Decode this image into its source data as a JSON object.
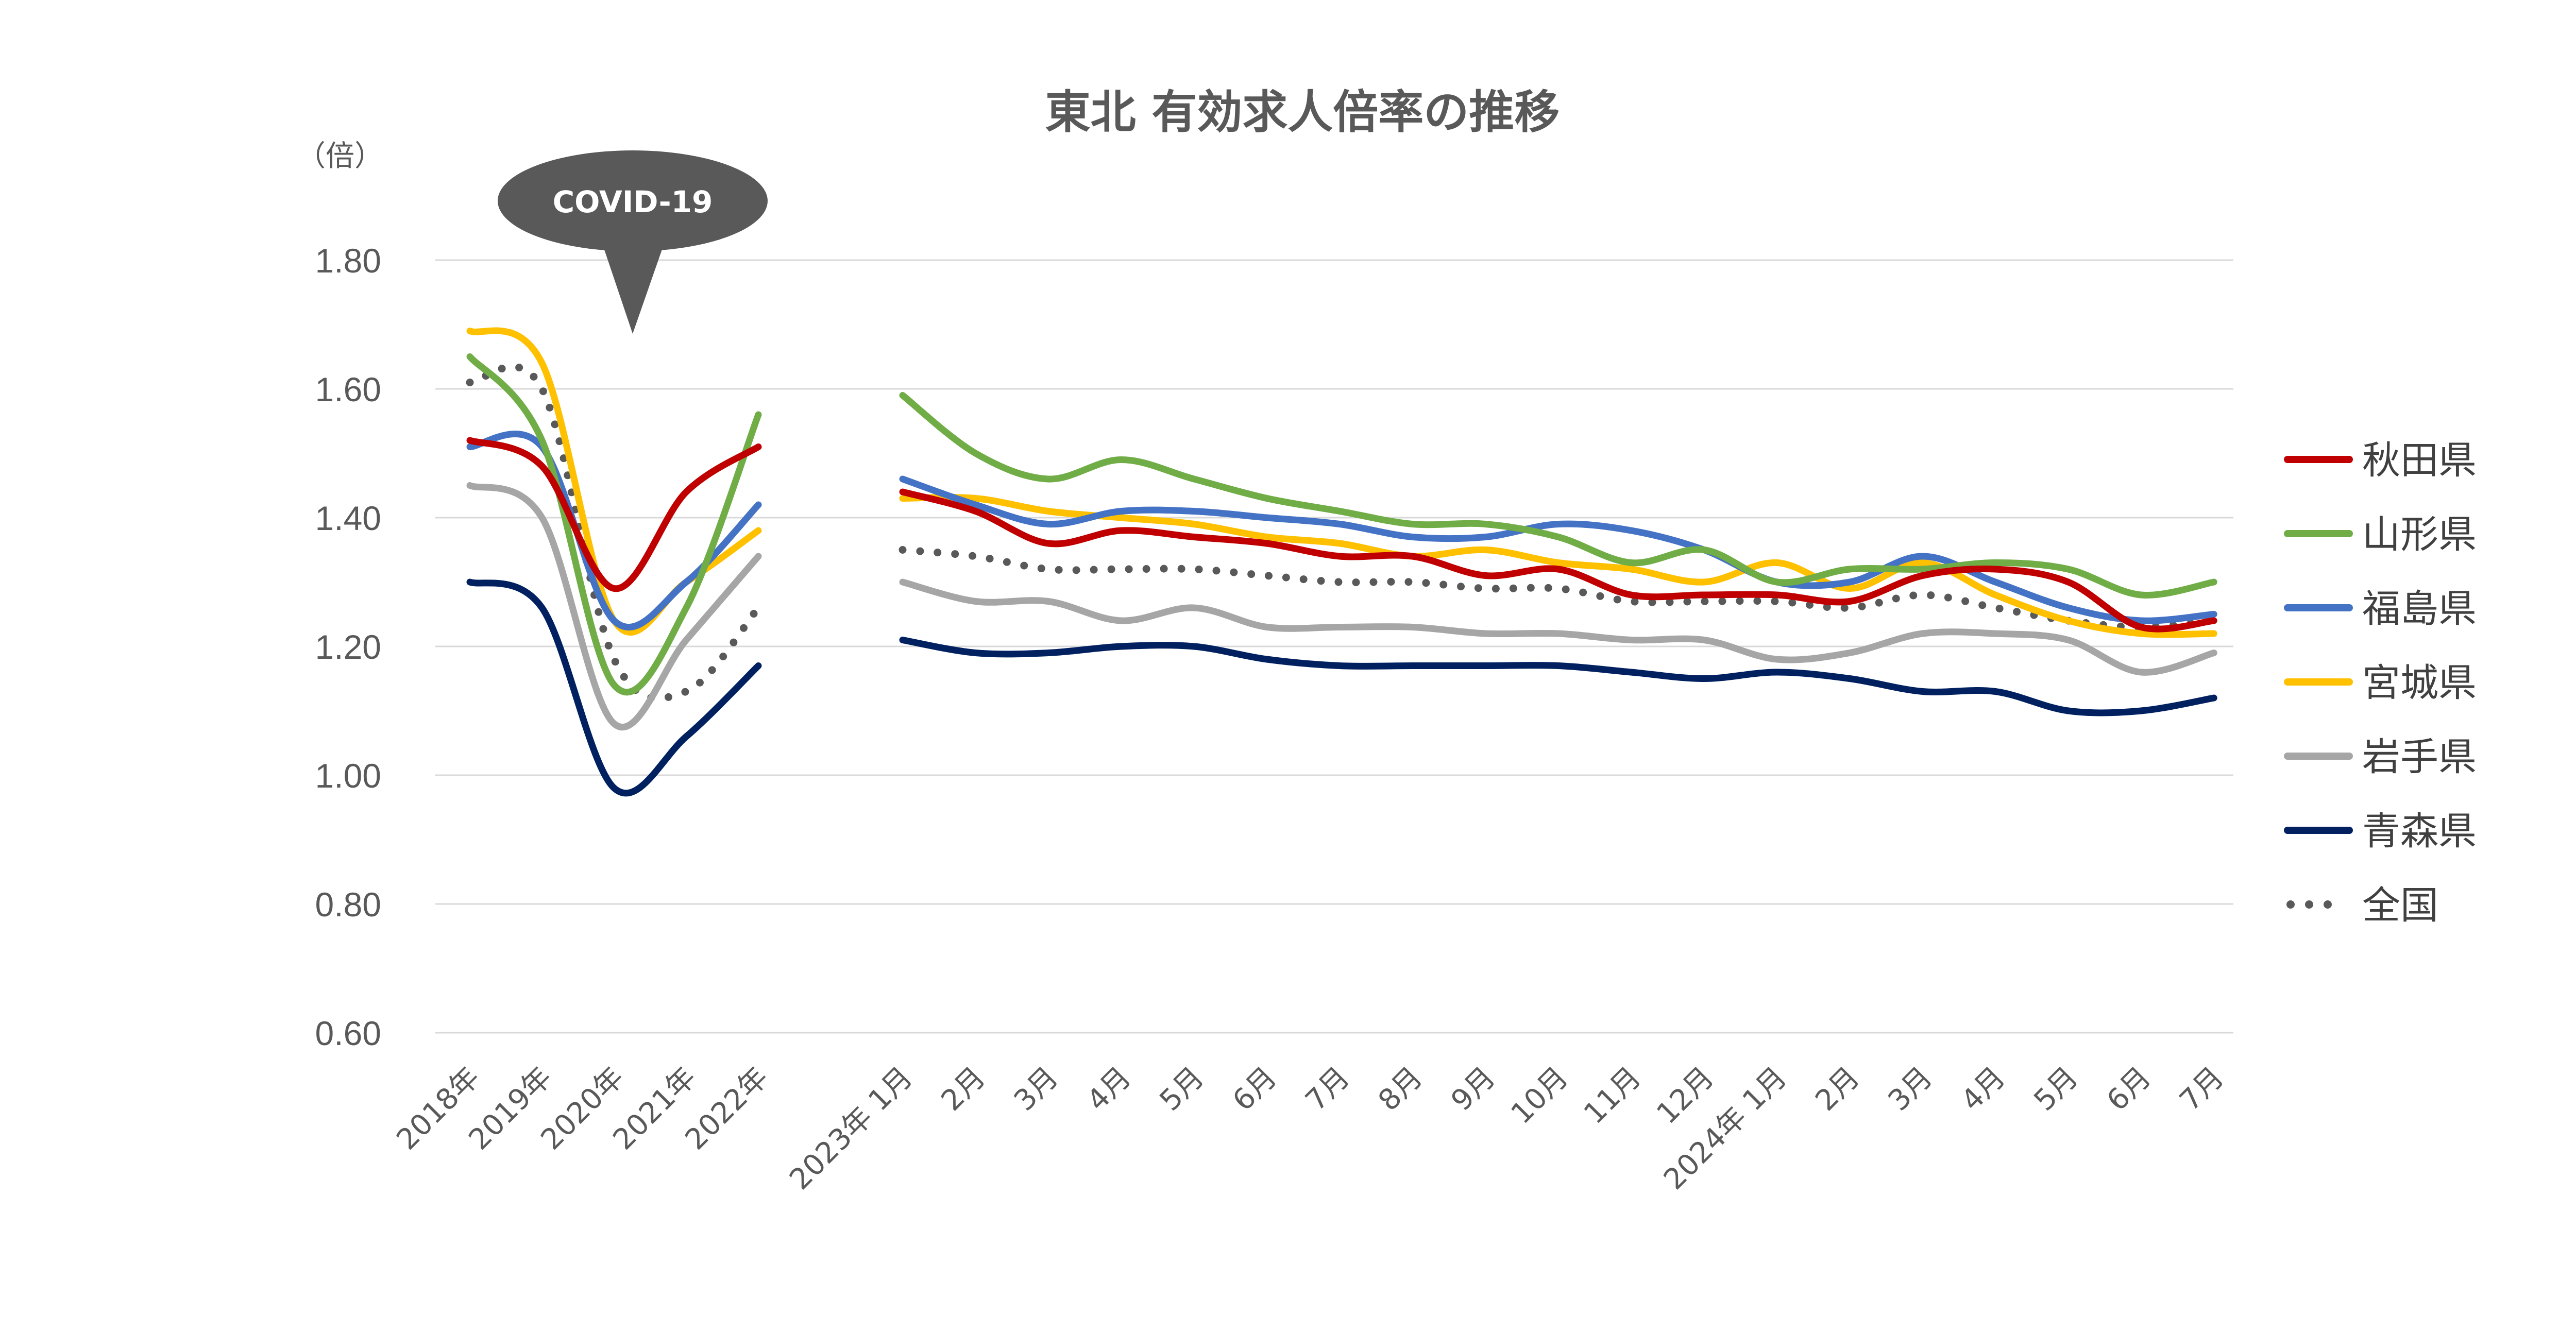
{
  "chart_data": {
    "type": "line",
    "title": "東北 有効求人倍率の推移",
    "ylabel": "（倍）",
    "ylim": [
      0.6,
      1.8
    ],
    "yticks": [
      "0.60",
      "0.80",
      "1.00",
      "1.20",
      "1.40",
      "1.60",
      "1.80"
    ],
    "grid": true,
    "legend_position": "right",
    "annotation": "COVID-19",
    "x_annual": [
      "2018年",
      "2019年",
      "2020年",
      "2021年",
      "2022年"
    ],
    "x_monthly": [
      "2023年 1月",
      "2月",
      "3月",
      "4月",
      "5月",
      "6月",
      "7月",
      "8月",
      "9月",
      "10月",
      "11月",
      "12月",
      "2024年 1月",
      "2月",
      "3月",
      "4月",
      "5月",
      "6月",
      "7月"
    ],
    "series": [
      {
        "name": "秋田県",
        "color": "#c00000",
        "style": "solid",
        "annual": [
          1.52,
          1.48,
          1.29,
          1.44,
          1.51
        ],
        "monthly": [
          1.44,
          1.41,
          1.36,
          1.38,
          1.37,
          1.36,
          1.34,
          1.34,
          1.31,
          1.32,
          1.28,
          1.28,
          1.28,
          1.27,
          1.31,
          1.32,
          1.3,
          1.23,
          1.24
        ]
      },
      {
        "name": "山形県",
        "color": "#70ad47",
        "style": "solid",
        "annual": [
          1.65,
          1.52,
          1.14,
          1.26,
          1.56
        ],
        "monthly": [
          1.59,
          1.5,
          1.46,
          1.49,
          1.46,
          1.43,
          1.41,
          1.39,
          1.39,
          1.37,
          1.33,
          1.35,
          1.3,
          1.32,
          1.32,
          1.33,
          1.32,
          1.28,
          1.3
        ]
      },
      {
        "name": "福島県",
        "color": "#4472c4",
        "style": "solid",
        "annual": [
          1.51,
          1.51,
          1.24,
          1.3,
          1.42
        ],
        "monthly": [
          1.46,
          1.42,
          1.39,
          1.41,
          1.41,
          1.4,
          1.39,
          1.37,
          1.37,
          1.39,
          1.38,
          1.35,
          1.3,
          1.3,
          1.34,
          1.3,
          1.26,
          1.24,
          1.25
        ]
      },
      {
        "name": "宮城県",
        "color": "#ffc000",
        "style": "solid",
        "annual": [
          1.69,
          1.64,
          1.24,
          1.3,
          1.38
        ],
        "monthly": [
          1.43,
          1.43,
          1.41,
          1.4,
          1.39,
          1.37,
          1.36,
          1.34,
          1.35,
          1.33,
          1.32,
          1.3,
          1.33,
          1.29,
          1.33,
          1.28,
          1.24,
          1.22,
          1.22
        ]
      },
      {
        "name": "岩手県",
        "color": "#a6a6a6",
        "style": "solid",
        "annual": [
          1.45,
          1.4,
          1.08,
          1.21,
          1.34
        ],
        "monthly": [
          1.3,
          1.27,
          1.27,
          1.24,
          1.26,
          1.23,
          1.23,
          1.23,
          1.22,
          1.22,
          1.21,
          1.21,
          1.18,
          1.19,
          1.22,
          1.22,
          1.21,
          1.16,
          1.19
        ]
      },
      {
        "name": "青森県",
        "color": "#002060",
        "style": "solid",
        "annual": [
          1.3,
          1.26,
          0.98,
          1.06,
          1.17
        ],
        "monthly": [
          1.21,
          1.19,
          1.19,
          1.2,
          1.2,
          1.18,
          1.17,
          1.17,
          1.17,
          1.17,
          1.16,
          1.15,
          1.16,
          1.15,
          1.13,
          1.13,
          1.1,
          1.1,
          1.12
        ]
      },
      {
        "name": "全国",
        "color": "#595959",
        "style": "dotted",
        "annual": [
          1.61,
          1.6,
          1.18,
          1.13,
          1.26
        ],
        "monthly": [
          1.35,
          1.34,
          1.32,
          1.32,
          1.32,
          1.31,
          1.3,
          1.3,
          1.29,
          1.29,
          1.27,
          1.27,
          1.27,
          1.26,
          1.28,
          1.26,
          1.24,
          1.23,
          1.24
        ]
      }
    ]
  }
}
